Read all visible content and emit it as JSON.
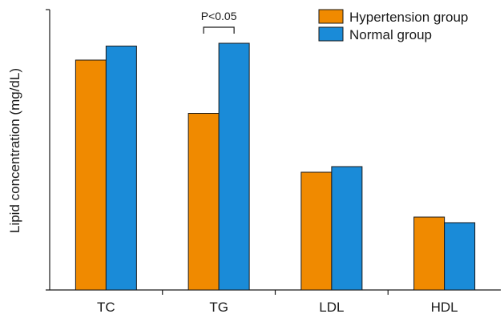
{
  "chart_data": {
    "type": "bar",
    "title": "",
    "xlabel": "",
    "ylabel": "Lipid concentration (mg/dL)",
    "categories": [
      "TC",
      "TG",
      "LDL",
      "HDL"
    ],
    "series": [
      {
        "name": "Hypertension group",
        "color": "#F08A00",
        "values": [
          82,
          63,
          42,
          26
        ]
      },
      {
        "name": "Normal group",
        "color": "#1A8BD8",
        "values": [
          87,
          88,
          44,
          24
        ]
      }
    ],
    "ylim": [
      0,
      100
    ],
    "y_ticks": "none",
    "grid": false,
    "legend": "top-right",
    "annotations": [
      {
        "text": "P<0.05",
        "category": "TG",
        "type": "bracket"
      }
    ]
  }
}
